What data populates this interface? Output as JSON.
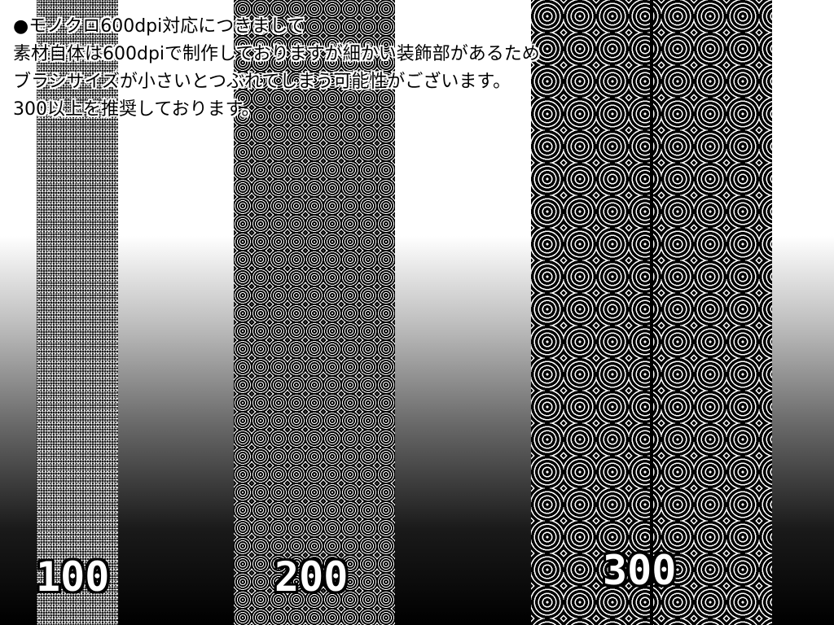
{
  "notes": [
    "●モノクロ600dpi対応につきまして",
    "素材自体は600dpiで制作しておりますが細かい装飾部があるため",
    "ブラシサイズが小さいとつぶれてしまう可能性がございます。",
    "300以上を推奨しております。"
  ],
  "samples": [
    {
      "label": "100"
    },
    {
      "label": "200"
    },
    {
      "label": "300"
    }
  ],
  "colors": {
    "pattern": "#ffffff",
    "background_top": "#ffffff",
    "background_bottom": "#000000"
  }
}
